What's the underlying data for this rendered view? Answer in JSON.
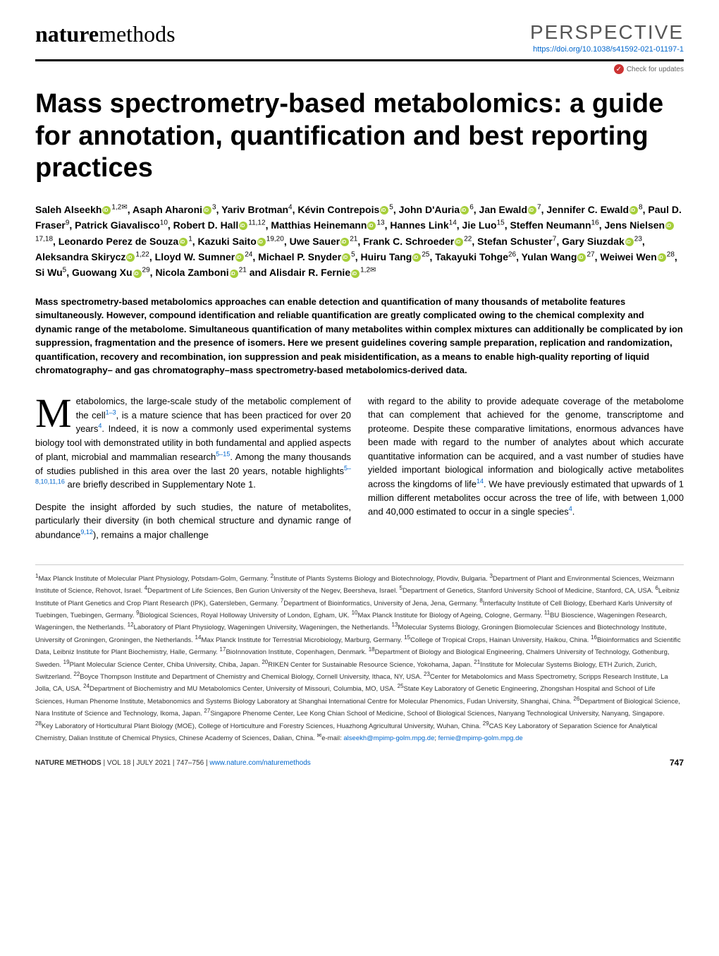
{
  "header": {
    "journal_bold": "nature",
    "journal_light": "methods",
    "article_type": "PERSPECTIVE",
    "doi": "https://doi.org/10.1038/s41592-021-01197-1",
    "check_updates": "Check for updates"
  },
  "title": "Mass spectrometry-based metabolomics: a guide for annotation, quantification and best reporting practices",
  "authors_html": "Saleh Alseekh⊙<sup>1,2✉</sup>, Asaph Aharoni⊙<sup>3</sup>, Yariv Brotman<sup>4</sup>, Kévin Contrepois⊙<sup>5</sup>, John D'Auria⊙<sup>6</sup>, Jan Ewald⊙<sup>7</sup>, Jennifer C. Ewald⊙<sup>8</sup>, Paul D. Fraser<sup>9</sup>, Patrick Giavalisco<sup>10</sup>, Robert D. Hall⊙<sup>11,12</sup>, Matthias Heinemann⊙<sup>13</sup>, Hannes Link<sup>14</sup>, Jie Luo<sup>15</sup>, Steffen Neumann<sup>16</sup>, Jens Nielsen⊙<sup>17,18</sup>, Leonardo Perez de Souza⊙<sup>1</sup>, Kazuki Saito⊙<sup>19,20</sup>, Uwe Sauer⊙<sup>21</sup>, Frank C. Schroeder⊙<sup>22</sup>, Stefan Schuster<sup>7</sup>, Gary Siuzdak⊙<sup>23</sup>, Aleksandra Skirycz⊙<sup>1,22</sup>, Lloyd W. Sumner⊙<sup>24</sup>, Michael P. Snyder⊙<sup>5</sup>, Huiru Tang⊙<sup>25</sup>, Takayuki Tohge<sup>26</sup>, Yulan Wang⊙<sup>27</sup>, Weiwei Wen⊙<sup>28</sup>, Si Wu<sup>5</sup>, Guowang Xu⊙<sup>29</sup>, Nicola Zamboni⊙<sup>21</sup> and Alisdair R. Fernie⊙<sup>1,2✉</sup>",
  "abstract": "Mass spectrometry-based metabolomics approaches can enable detection and quantification of many thousands of metabolite features simultaneously. However, compound identification and reliable quantification are greatly complicated owing to the chemical complexity and dynamic range of the metabolome. Simultaneous quantification of many metabolites within complex mixtures can additionally be complicated by ion suppression, fragmentation and the presence of isomers. Here we present guidelines covering sample preparation, replication and randomization, quantification, recovery and recombination, ion suppression and peak misidentification, as a means to enable high-quality reporting of liquid chromatography– and gas chromatography–mass spectrometry-based metabolomics-derived data.",
  "body": {
    "col1_p1": "etabolomics, the large-scale study of the metabolic complement of the cell<sup>1–3</sup>, is a mature science that has been practiced for over 20 years<sup>4</sup>. Indeed, it is now a commonly used experimental systems biology tool with demonstrated utility in both fundamental and applied aspects of plant, microbial and mammalian research<sup>5–15</sup>. Among the many thousands of studies published in this area over the last 20 years, notable highlights<sup>5–8,10,11,16</sup> are briefly described in Supplementary Note 1.",
    "col1_p2": "Despite the insight afforded by such studies, the nature of metabolites, particularly their diversity (in both chemical structure and dynamic range of abundance<sup>9,12</sup>), remains a major challenge",
    "col2_p1": "with regard to the ability to provide adequate coverage of the metabolome that can complement that achieved for the genome, transcriptome and proteome. Despite these comparative limitations, enormous advances have been made with regard to the number of analytes about which accurate quantitative information can be acquired, and a vast number of studies have yielded important biological information and biologically active metabolites across the kingdoms of life<sup>14</sup>. We have previously estimated that upwards of 1 million different metabolites occur across the tree of life, with between 1,000 and 40,000 estimated to occur in a single species<sup>4</sup>."
  },
  "affiliations": "<sup>1</sup>Max Planck Institute of Molecular Plant Physiology, Potsdam-Golm, Germany. <sup>2</sup>Institute of Plants Systems Biology and Biotechnology, Plovdiv, Bulgaria. <sup>3</sup>Department of Plant and Environmental Sciences, Weizmann Institute of Science, Rehovot, Israel. <sup>4</sup>Department of Life Sciences, Ben Gurion University of the Negev, Beersheva, Israel. <sup>5</sup>Department of Genetics, Stanford University School of Medicine, Stanford, CA, USA. <sup>6</sup>Leibniz Institute of Plant Genetics and Crop Plant Research (IPK), Gatersleben, Germany. <sup>7</sup>Department of Bioinformatics, University of Jena, Jena, Germany. <sup>8</sup>Interfaculty Institute of Cell Biology, Eberhard Karls University of Tuebingen, Tuebingen, Germany. <sup>9</sup>Biological Sciences, Royal Holloway University of London, Egham, UK. <sup>10</sup>Max Planck Institute for Biology of Ageing, Cologne, Germany. <sup>11</sup>BU Bioscience, Wageningen Research, Wageningen, the Netherlands. <sup>12</sup>Laboratory of Plant Physiology, Wageningen University, Wageningen, the Netherlands. <sup>13</sup>Molecular Systems Biology, Groningen Biomolecular Sciences and Biotechnology Institute, University of Groningen, Groningen, the Netherlands. <sup>14</sup>Max Planck Institute for Terrestrial Microbiology, Marburg, Germany. <sup>15</sup>College of Tropical Crops, Hainan University, Haikou, China. <sup>16</sup>Bioinformatics and Scientific Data, Leibniz Institute for Plant Biochemistry, Halle, Germany. <sup>17</sup>BioInnovation Institute, Copenhagen, Denmark. <sup>18</sup>Department of Biology and Biological Engineering, Chalmers University of Technology, Gothenburg, Sweden. <sup>19</sup>Plant Molecular Science Center, Chiba University, Chiba, Japan. <sup>20</sup>RIKEN Center for Sustainable Resource Science, Yokohama, Japan. <sup>21</sup>Institute for Molecular Systems Biology, ETH Zurich, Zurich, Switzerland. <sup>22</sup>Boyce Thompson Institute and Department of Chemistry and Chemical Biology, Cornell University, Ithaca, NY, USA. <sup>23</sup>Center for Metabolomics and Mass Spectrometry, Scripps Research Institute, La Jolla, CA, USA. <sup>24</sup>Department of Biochemistry and MU Metabolomics Center, University of Missouri, Columbia, MO, USA. <sup>25</sup>State Key Laboratory of Genetic Engineering, Zhongshan Hospital and School of Life Sciences, Human Phenome Institute, Metabonomics and Systems Biology Laboratory at Shanghai International Centre for Molecular Phenomics, Fudan University, Shanghai, China. <sup>26</sup>Department of Biological Science, Nara Institute of Science and Technology, Ikoma, Japan. <sup>27</sup>Singapore Phenome Center, Lee Kong Chian School of Medicine, School of Biological Sciences, Nanyang Technological University, Nanyang, Singapore. <sup>28</sup>Key Laboratory of Horticultural Plant Biology (MOE), College of Horticulture and Forestry Sciences, Huazhong Agricultural University, Wuhan, China. <sup>29</sup>CAS Key Laboratory of Separation Science for Analytical Chemistry, Dalian Institute of Chemical Physics, Chinese Academy of Sciences, Dalian, China. <sup>✉</sup>e-mail: <span class=\"email\">alseekh@mpimp-golm.mpg.de</span>; <span class=\"email\">fernie@mpimp-golm.mpg.de</span>",
  "footer": {
    "journal": "NATURE METHODS",
    "info": " | VOL 18 | JULY 2021 | 747–756 | ",
    "link": "www.nature.com/naturemethods",
    "page": "747"
  },
  "colors": {
    "link": "#0066cc",
    "orcid": "#a6ce39",
    "text": "#000000",
    "bg": "#ffffff"
  }
}
